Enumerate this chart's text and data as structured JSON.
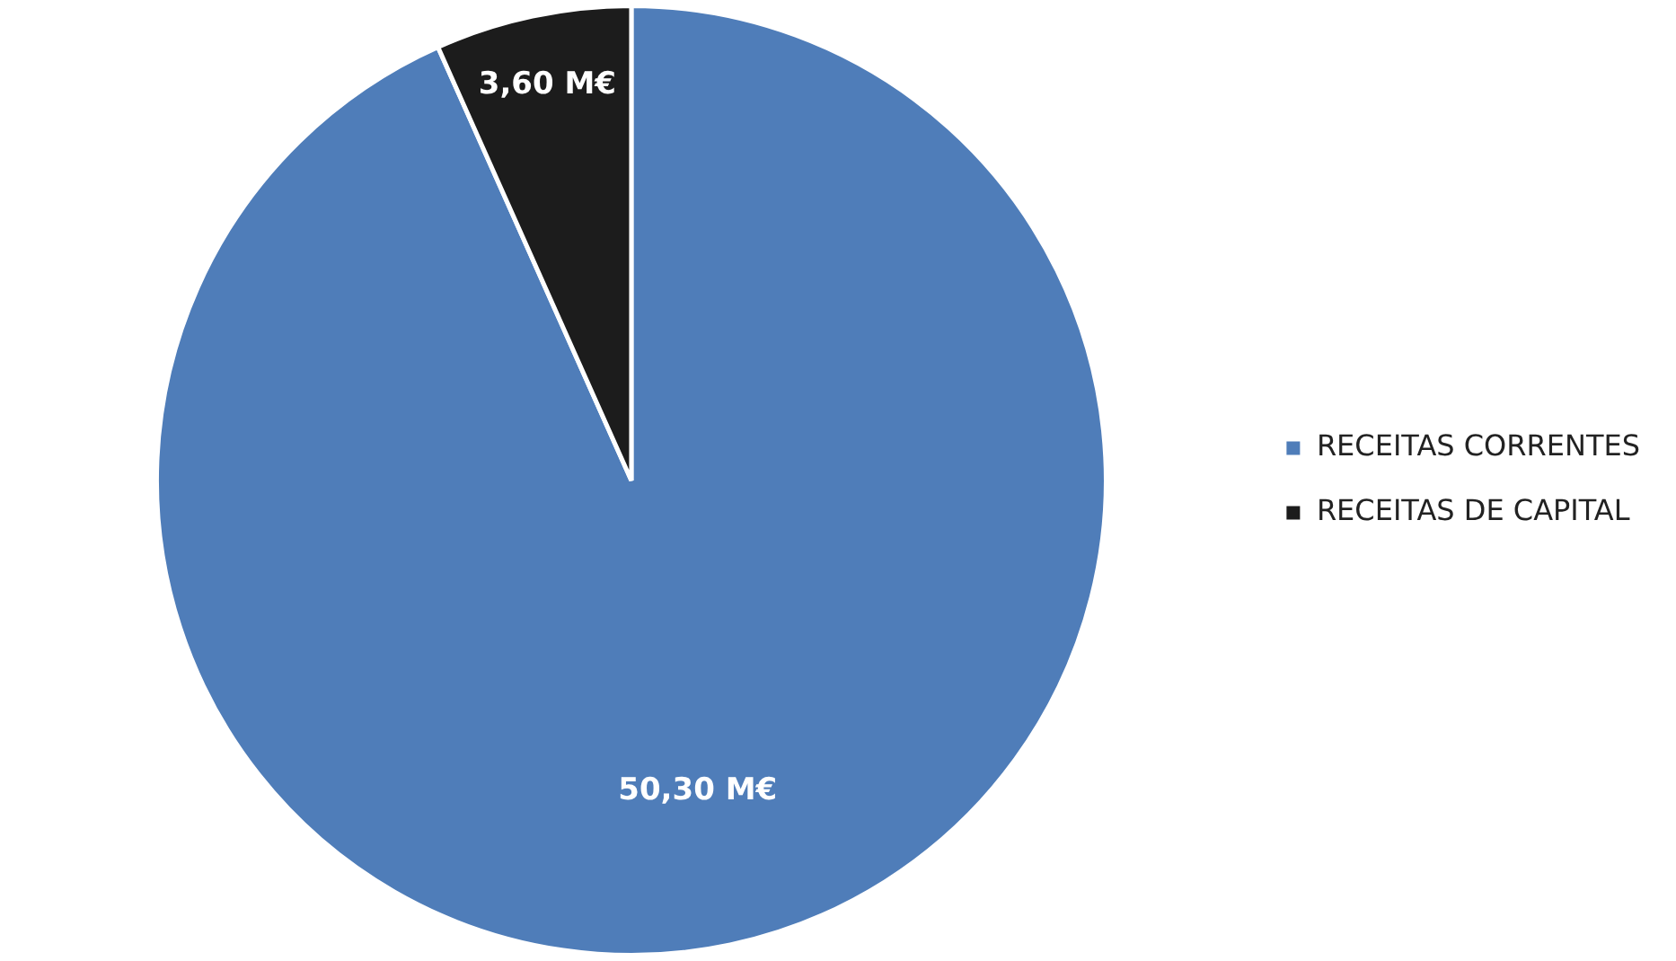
{
  "chart_data": {
    "type": "pie",
    "categories": [
      "RECEITAS CORRENTES",
      "RECEITAS DE CAPITAL"
    ],
    "values": [
      50.3,
      3.6
    ],
    "colors": [
      "#4f7db9",
      "#1c1c1c"
    ],
    "value_labels": [
      "50,30 M€",
      "3,60 M€"
    ],
    "legend": "right"
  }
}
